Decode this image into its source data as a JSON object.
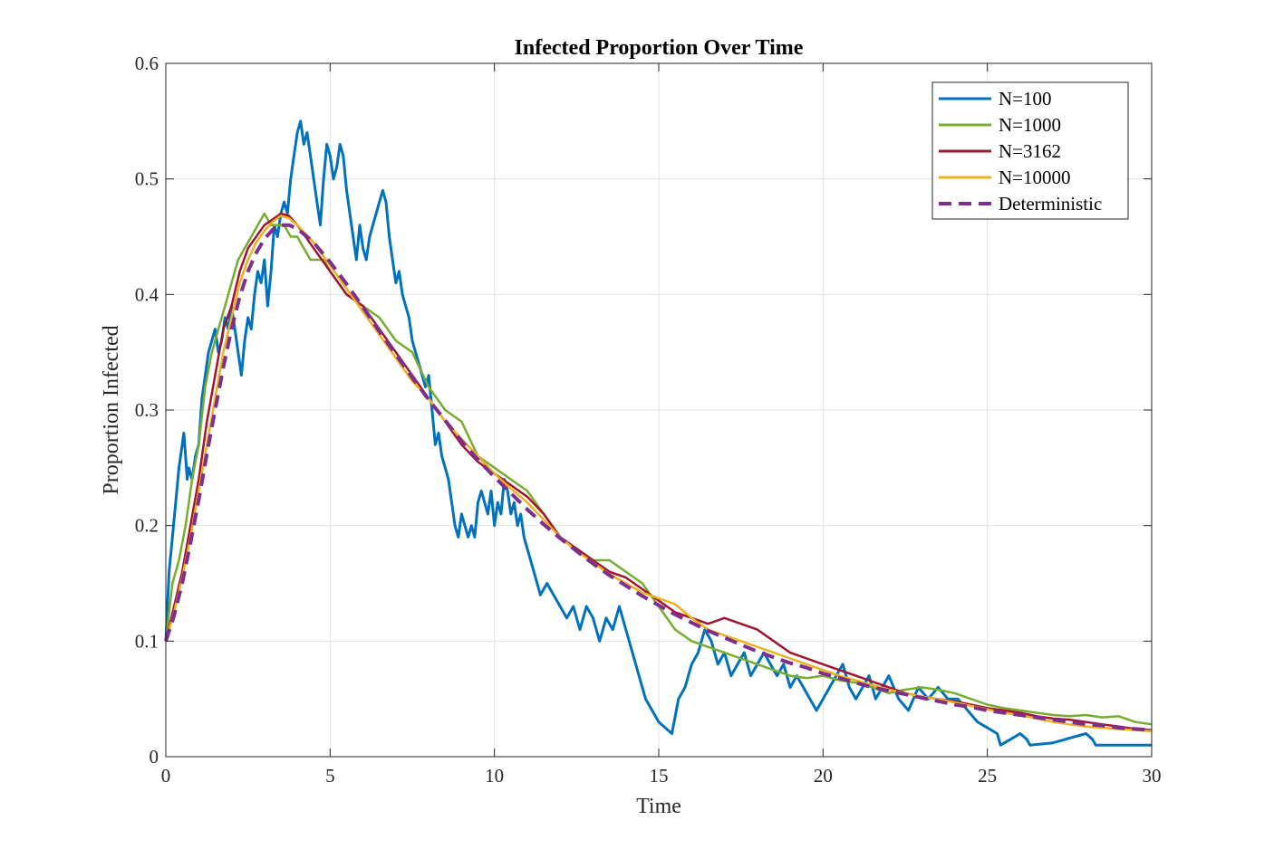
{
  "chart_data": {
    "type": "line",
    "title": "Infected Proportion Over Time",
    "xlabel": "Time",
    "ylabel": "Proportion Infected",
    "xlim": [
      0,
      30
    ],
    "ylim": [
      0,
      0.6
    ],
    "xticks": [
      0,
      5,
      10,
      15,
      20,
      25,
      30
    ],
    "yticks": [
      0,
      0.1,
      0.2,
      0.3,
      0.4,
      0.5,
      0.6
    ],
    "xtick_labels": [
      "0",
      "5",
      "10",
      "15",
      "20",
      "25",
      "30"
    ],
    "ytick_labels": [
      "0",
      "0.1",
      "0.2",
      "0.3",
      "0.4",
      "0.5",
      "0.6"
    ],
    "grid": true,
    "legend_position": "top-right",
    "series": [
      {
        "name": "N=100",
        "color": "#0072BD",
        "style": "solid",
        "x": [
          0,
          0.1,
          0.2,
          0.3,
          0.4,
          0.5,
          0.55,
          0.6,
          0.65,
          0.7,
          0.8,
          0.9,
          1.0,
          1.1,
          1.2,
          1.3,
          1.4,
          1.5,
          1.6,
          1.7,
          1.8,
          1.9,
          2.0,
          2.1,
          2.2,
          2.3,
          2.4,
          2.5,
          2.6,
          2.7,
          2.8,
          2.9,
          3.0,
          3.1,
          3.2,
          3.3,
          3.4,
          3.5,
          3.6,
          3.7,
          3.8,
          3.9,
          4.0,
          4.1,
          4.2,
          4.3,
          4.4,
          4.5,
          4.6,
          4.7,
          4.8,
          4.9,
          5.0,
          5.1,
          5.2,
          5.3,
          5.4,
          5.5,
          5.6,
          5.7,
          5.8,
          5.9,
          6.0,
          6.1,
          6.2,
          6.3,
          6.4,
          6.5,
          6.6,
          6.7,
          6.8,
          6.9,
          7.0,
          7.1,
          7.2,
          7.3,
          7.4,
          7.5,
          7.6,
          7.7,
          7.8,
          7.9,
          8.0,
          8.1,
          8.2,
          8.3,
          8.4,
          8.5,
          8.6,
          8.7,
          8.8,
          8.9,
          9.0,
          9.1,
          9.2,
          9.3,
          9.4,
          9.5,
          9.6,
          9.7,
          9.8,
          9.9,
          10.0,
          10.1,
          10.2,
          10.3,
          10.4,
          10.5,
          10.6,
          10.7,
          10.8,
          10.9,
          11.0,
          11.2,
          11.4,
          11.6,
          11.8,
          12.0,
          12.2,
          12.4,
          12.6,
          12.8,
          13.0,
          13.2,
          13.4,
          13.6,
          13.8,
          14.0,
          14.2,
          14.4,
          14.6,
          14.8,
          15.0,
          15.2,
          15.4,
          15.6,
          15.8,
          16.0,
          16.2,
          16.4,
          16.6,
          16.8,
          17.0,
          17.2,
          17.4,
          17.6,
          17.8,
          18.0,
          18.2,
          18.4,
          18.6,
          18.8,
          19.0,
          19.2,
          19.4,
          19.6,
          19.8,
          20.0,
          20.2,
          20.4,
          20.6,
          20.8,
          21.0,
          21.2,
          21.4,
          21.6,
          21.8,
          22.0,
          22.3,
          22.6,
          22.9,
          23.2,
          23.5,
          23.8,
          24.1,
          24.4,
          24.7,
          25.0,
          25.3,
          25.4,
          25.7,
          26.0,
          26.2,
          26.3,
          27.0,
          27.5,
          28.0,
          28.2,
          28.3,
          29.0,
          30.0
        ],
        "y": [
          0.1,
          0.16,
          0.19,
          0.22,
          0.25,
          0.27,
          0.28,
          0.26,
          0.24,
          0.25,
          0.24,
          0.26,
          0.27,
          0.31,
          0.33,
          0.35,
          0.36,
          0.37,
          0.35,
          0.36,
          0.38,
          0.37,
          0.39,
          0.37,
          0.35,
          0.33,
          0.36,
          0.38,
          0.37,
          0.4,
          0.42,
          0.41,
          0.43,
          0.39,
          0.42,
          0.46,
          0.45,
          0.47,
          0.48,
          0.47,
          0.5,
          0.52,
          0.54,
          0.55,
          0.53,
          0.54,
          0.52,
          0.5,
          0.48,
          0.46,
          0.5,
          0.53,
          0.52,
          0.5,
          0.51,
          0.53,
          0.52,
          0.49,
          0.47,
          0.45,
          0.43,
          0.46,
          0.44,
          0.43,
          0.45,
          0.46,
          0.47,
          0.48,
          0.49,
          0.48,
          0.45,
          0.43,
          0.41,
          0.42,
          0.4,
          0.39,
          0.38,
          0.36,
          0.35,
          0.34,
          0.33,
          0.32,
          0.33,
          0.3,
          0.27,
          0.28,
          0.26,
          0.25,
          0.24,
          0.22,
          0.2,
          0.19,
          0.21,
          0.2,
          0.19,
          0.2,
          0.19,
          0.22,
          0.23,
          0.22,
          0.21,
          0.23,
          0.2,
          0.22,
          0.21,
          0.24,
          0.23,
          0.21,
          0.22,
          0.2,
          0.21,
          0.19,
          0.18,
          0.16,
          0.14,
          0.15,
          0.14,
          0.13,
          0.12,
          0.13,
          0.11,
          0.13,
          0.12,
          0.1,
          0.12,
          0.11,
          0.13,
          0.11,
          0.09,
          0.07,
          0.05,
          0.04,
          0.03,
          0.025,
          0.02,
          0.05,
          0.06,
          0.08,
          0.09,
          0.11,
          0.1,
          0.08,
          0.09,
          0.07,
          0.08,
          0.09,
          0.07,
          0.08,
          0.09,
          0.08,
          0.07,
          0.08,
          0.06,
          0.07,
          0.06,
          0.05,
          0.04,
          0.05,
          0.06,
          0.07,
          0.08,
          0.06,
          0.05,
          0.06,
          0.07,
          0.05,
          0.06,
          0.07,
          0.05,
          0.04,
          0.06,
          0.05,
          0.06,
          0.05,
          0.05,
          0.04,
          0.03,
          0.025,
          0.02,
          0.01,
          0.015,
          0.02,
          0.015,
          0.01,
          0.012,
          0.016,
          0.02,
          0.015,
          0.01,
          0.01,
          0.01
        ]
      },
      {
        "name": "N=1000",
        "color": "#77AC30",
        "style": "solid",
        "x": [
          0,
          0.2,
          0.4,
          0.6,
          0.8,
          1.0,
          1.2,
          1.4,
          1.6,
          1.8,
          2.0,
          2.2,
          2.4,
          2.6,
          2.8,
          3.0,
          3.2,
          3.4,
          3.6,
          3.8,
          4.0,
          4.2,
          4.4,
          4.6,
          4.8,
          5.0,
          5.5,
          6.0,
          6.5,
          7.0,
          7.5,
          8.0,
          8.5,
          9.0,
          9.5,
          10.0,
          10.5,
          11.0,
          11.5,
          12.0,
          12.5,
          13.0,
          13.5,
          14.0,
          14.5,
          15.0,
          15.5,
          16.0,
          16.5,
          17.0,
          17.5,
          18.0,
          18.5,
          19.0,
          19.5,
          20.0,
          20.5,
          21.0,
          21.5,
          22.0,
          22.5,
          23.0,
          23.5,
          24.0,
          24.5,
          25.0,
          25.5,
          26.0,
          26.5,
          27.0,
          27.5,
          28.0,
          28.5,
          29.0,
          29.5,
          30.0
        ],
        "y": [
          0.1,
          0.15,
          0.17,
          0.2,
          0.24,
          0.27,
          0.32,
          0.35,
          0.37,
          0.39,
          0.41,
          0.43,
          0.44,
          0.45,
          0.46,
          0.47,
          0.46,
          0.46,
          0.46,
          0.45,
          0.45,
          0.44,
          0.43,
          0.43,
          0.43,
          0.42,
          0.4,
          0.39,
          0.38,
          0.36,
          0.35,
          0.32,
          0.3,
          0.29,
          0.26,
          0.25,
          0.24,
          0.23,
          0.21,
          0.19,
          0.18,
          0.17,
          0.17,
          0.16,
          0.15,
          0.13,
          0.11,
          0.1,
          0.095,
          0.09,
          0.085,
          0.08,
          0.075,
          0.07,
          0.068,
          0.07,
          0.066,
          0.064,
          0.06,
          0.055,
          0.058,
          0.06,
          0.058,
          0.055,
          0.05,
          0.045,
          0.042,
          0.04,
          0.038,
          0.036,
          0.035,
          0.036,
          0.034,
          0.035,
          0.03,
          0.028
        ]
      },
      {
        "name": "N=3162",
        "color": "#A2142F",
        "style": "solid",
        "x": [
          0,
          0.25,
          0.5,
          0.75,
          1.0,
          1.25,
          1.5,
          1.75,
          2.0,
          2.25,
          2.5,
          2.75,
          3.0,
          3.25,
          3.5,
          3.75,
          4.0,
          4.5,
          5.0,
          5.5,
          6.0,
          6.5,
          7.0,
          7.5,
          8.0,
          8.5,
          9.0,
          9.5,
          10.0,
          10.5,
          11.0,
          11.5,
          12.0,
          12.5,
          13.0,
          13.5,
          14.0,
          14.5,
          15.0,
          15.5,
          16.0,
          16.5,
          17.0,
          17.5,
          18.0,
          18.5,
          19.0,
          19.5,
          20.0,
          20.5,
          21.0,
          21.5,
          22.0,
          22.5,
          23.0,
          23.5,
          24.0,
          24.5,
          25.0,
          25.5,
          26.0,
          26.5,
          27.0,
          27.5,
          28.0,
          28.5,
          29.0,
          29.5,
          30.0
        ],
        "y": [
          0.1,
          0.13,
          0.16,
          0.2,
          0.24,
          0.29,
          0.33,
          0.37,
          0.39,
          0.42,
          0.44,
          0.45,
          0.46,
          0.465,
          0.47,
          0.468,
          0.46,
          0.44,
          0.42,
          0.4,
          0.39,
          0.37,
          0.35,
          0.33,
          0.31,
          0.29,
          0.27,
          0.255,
          0.245,
          0.235,
          0.225,
          0.21,
          0.19,
          0.18,
          0.17,
          0.16,
          0.155,
          0.145,
          0.135,
          0.125,
          0.12,
          0.115,
          0.12,
          0.115,
          0.11,
          0.1,
          0.09,
          0.085,
          0.08,
          0.075,
          0.07,
          0.065,
          0.06,
          0.055,
          0.052,
          0.05,
          0.048,
          0.045,
          0.042,
          0.04,
          0.038,
          0.035,
          0.033,
          0.032,
          0.03,
          0.028,
          0.026,
          0.024,
          0.023
        ]
      },
      {
        "name": "N=10000",
        "color": "#EDB120",
        "style": "solid",
        "x": [
          0,
          0.25,
          0.5,
          0.75,
          1.0,
          1.25,
          1.5,
          1.75,
          2.0,
          2.25,
          2.5,
          2.75,
          3.0,
          3.25,
          3.5,
          3.75,
          4.0,
          4.5,
          5.0,
          5.5,
          6.0,
          6.5,
          7.0,
          7.5,
          8.0,
          8.5,
          9.0,
          9.5,
          10.0,
          10.5,
          11.0,
          11.5,
          12.0,
          12.5,
          13.0,
          13.5,
          14.0,
          14.5,
          15.0,
          15.5,
          16.0,
          16.5,
          17.0,
          17.5,
          18.0,
          18.5,
          19.0,
          19.5,
          20.0,
          20.5,
          21.0,
          21.5,
          22.0,
          22.5,
          23.0,
          23.5,
          24.0,
          24.5,
          25.0,
          25.5,
          26.0,
          26.5,
          27.0,
          27.5,
          28.0,
          28.5,
          29.0,
          29.5,
          30.0
        ],
        "y": [
          0.1,
          0.125,
          0.155,
          0.19,
          0.23,
          0.27,
          0.31,
          0.35,
          0.38,
          0.41,
          0.43,
          0.445,
          0.455,
          0.463,
          0.468,
          0.466,
          0.46,
          0.445,
          0.425,
          0.405,
          0.385,
          0.365,
          0.345,
          0.325,
          0.31,
          0.29,
          0.275,
          0.26,
          0.245,
          0.232,
          0.22,
          0.205,
          0.19,
          0.178,
          0.168,
          0.158,
          0.15,
          0.142,
          0.137,
          0.132,
          0.12,
          0.11,
          0.105,
          0.1,
          0.095,
          0.09,
          0.085,
          0.08,
          0.075,
          0.07,
          0.066,
          0.062,
          0.058,
          0.055,
          0.052,
          0.05,
          0.047,
          0.044,
          0.041,
          0.038,
          0.036,
          0.033,
          0.03,
          0.028,
          0.026,
          0.025,
          0.024,
          0.023,
          0.022
        ]
      },
      {
        "name": "Deterministic",
        "color": "#7E2F8E",
        "style": "dashed",
        "x": [
          0,
          0.25,
          0.5,
          0.75,
          1.0,
          1.25,
          1.5,
          1.75,
          2.0,
          2.25,
          2.5,
          2.75,
          3.0,
          3.25,
          3.5,
          3.75,
          4.0,
          4.5,
          5.0,
          5.5,
          6.0,
          6.5,
          7.0,
          7.5,
          8.0,
          8.5,
          9.0,
          9.5,
          10.0,
          10.5,
          11.0,
          11.5,
          12.0,
          12.5,
          13.0,
          13.5,
          14.0,
          14.5,
          15.0,
          15.5,
          16.0,
          16.5,
          17.0,
          17.5,
          18.0,
          18.5,
          19.0,
          19.5,
          20.0,
          20.5,
          21.0,
          21.5,
          22.0,
          22.5,
          23.0,
          23.5,
          24.0,
          24.5,
          25.0,
          25.5,
          26.0,
          26.5,
          27.0,
          27.5,
          28.0,
          28.5,
          29.0,
          29.5,
          30.0
        ],
        "y": [
          0.1,
          0.122,
          0.15,
          0.185,
          0.222,
          0.262,
          0.3,
          0.337,
          0.37,
          0.398,
          0.42,
          0.436,
          0.448,
          0.456,
          0.46,
          0.46,
          0.457,
          0.445,
          0.428,
          0.409,
          0.389,
          0.368,
          0.348,
          0.328,
          0.309,
          0.291,
          0.273,
          0.257,
          0.242,
          0.228,
          0.214,
          0.201,
          0.189,
          0.178,
          0.167,
          0.157,
          0.148,
          0.139,
          0.131,
          0.123,
          0.116,
          0.109,
          0.103,
          0.097,
          0.091,
          0.086,
          0.081,
          0.077,
          0.072,
          0.068,
          0.064,
          0.06,
          0.057,
          0.054,
          0.051,
          0.048,
          0.045,
          0.043,
          0.04,
          0.038,
          0.036,
          0.034,
          0.032,
          0.03,
          0.028,
          0.027,
          0.025,
          0.024,
          0.023
        ]
      }
    ]
  }
}
